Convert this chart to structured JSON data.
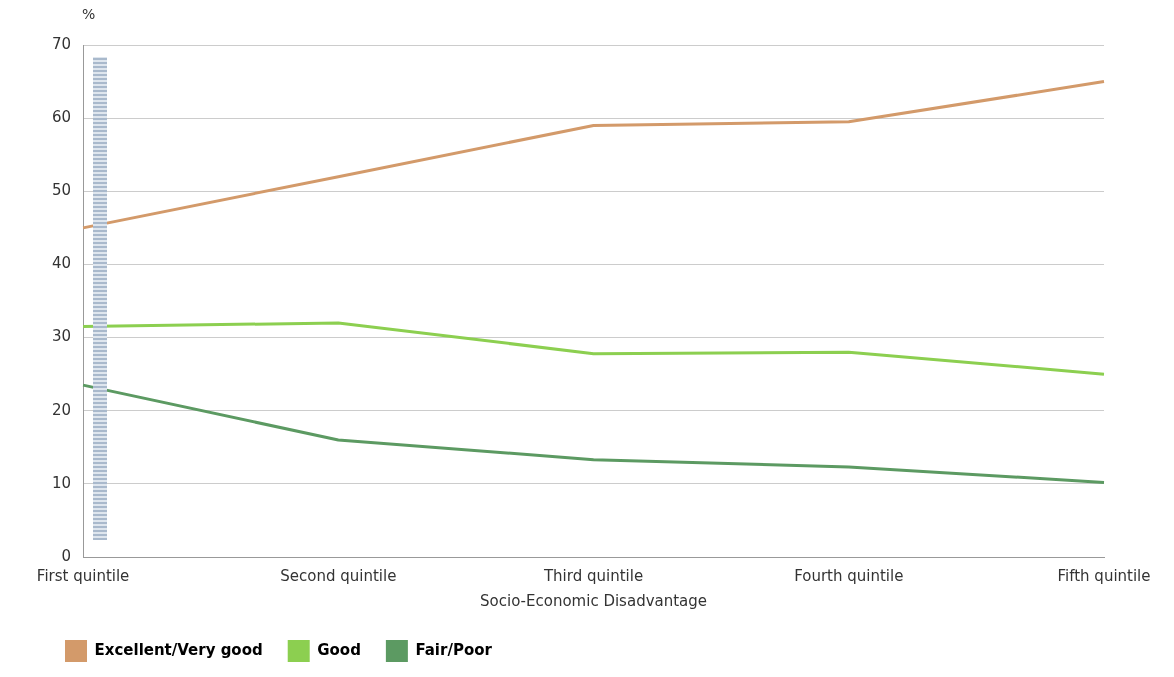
{
  "chart_data": {
    "type": "line",
    "xlabel": "Socio-Economic Disadvantage",
    "ylabel": "%",
    "categories": [
      "First quintile",
      "Second quintile",
      "Third quintile",
      "Fourth quintile",
      "Fifth quintile"
    ],
    "series": [
      {
        "name": "Excellent/Very good",
        "color": "#d39a6a",
        "values": [
          45,
          52,
          59,
          59.5,
          65
        ]
      },
      {
        "name": "Good",
        "color": "#8ccf50",
        "values": [
          31.5,
          32,
          27.8,
          28,
          25
        ]
      },
      {
        "name": "Fair/Poor",
        "color": "#5c9a62",
        "values": [
          23.5,
          16,
          13.3,
          12.3,
          10.2
        ]
      }
    ],
    "ylim": [
      0,
      70
    ],
    "yticks": [
      0,
      10,
      20,
      30,
      40,
      50,
      60,
      70
    ],
    "grid": "y",
    "legend": "bottom left",
    "marker": "none",
    "line_style": "solid"
  }
}
